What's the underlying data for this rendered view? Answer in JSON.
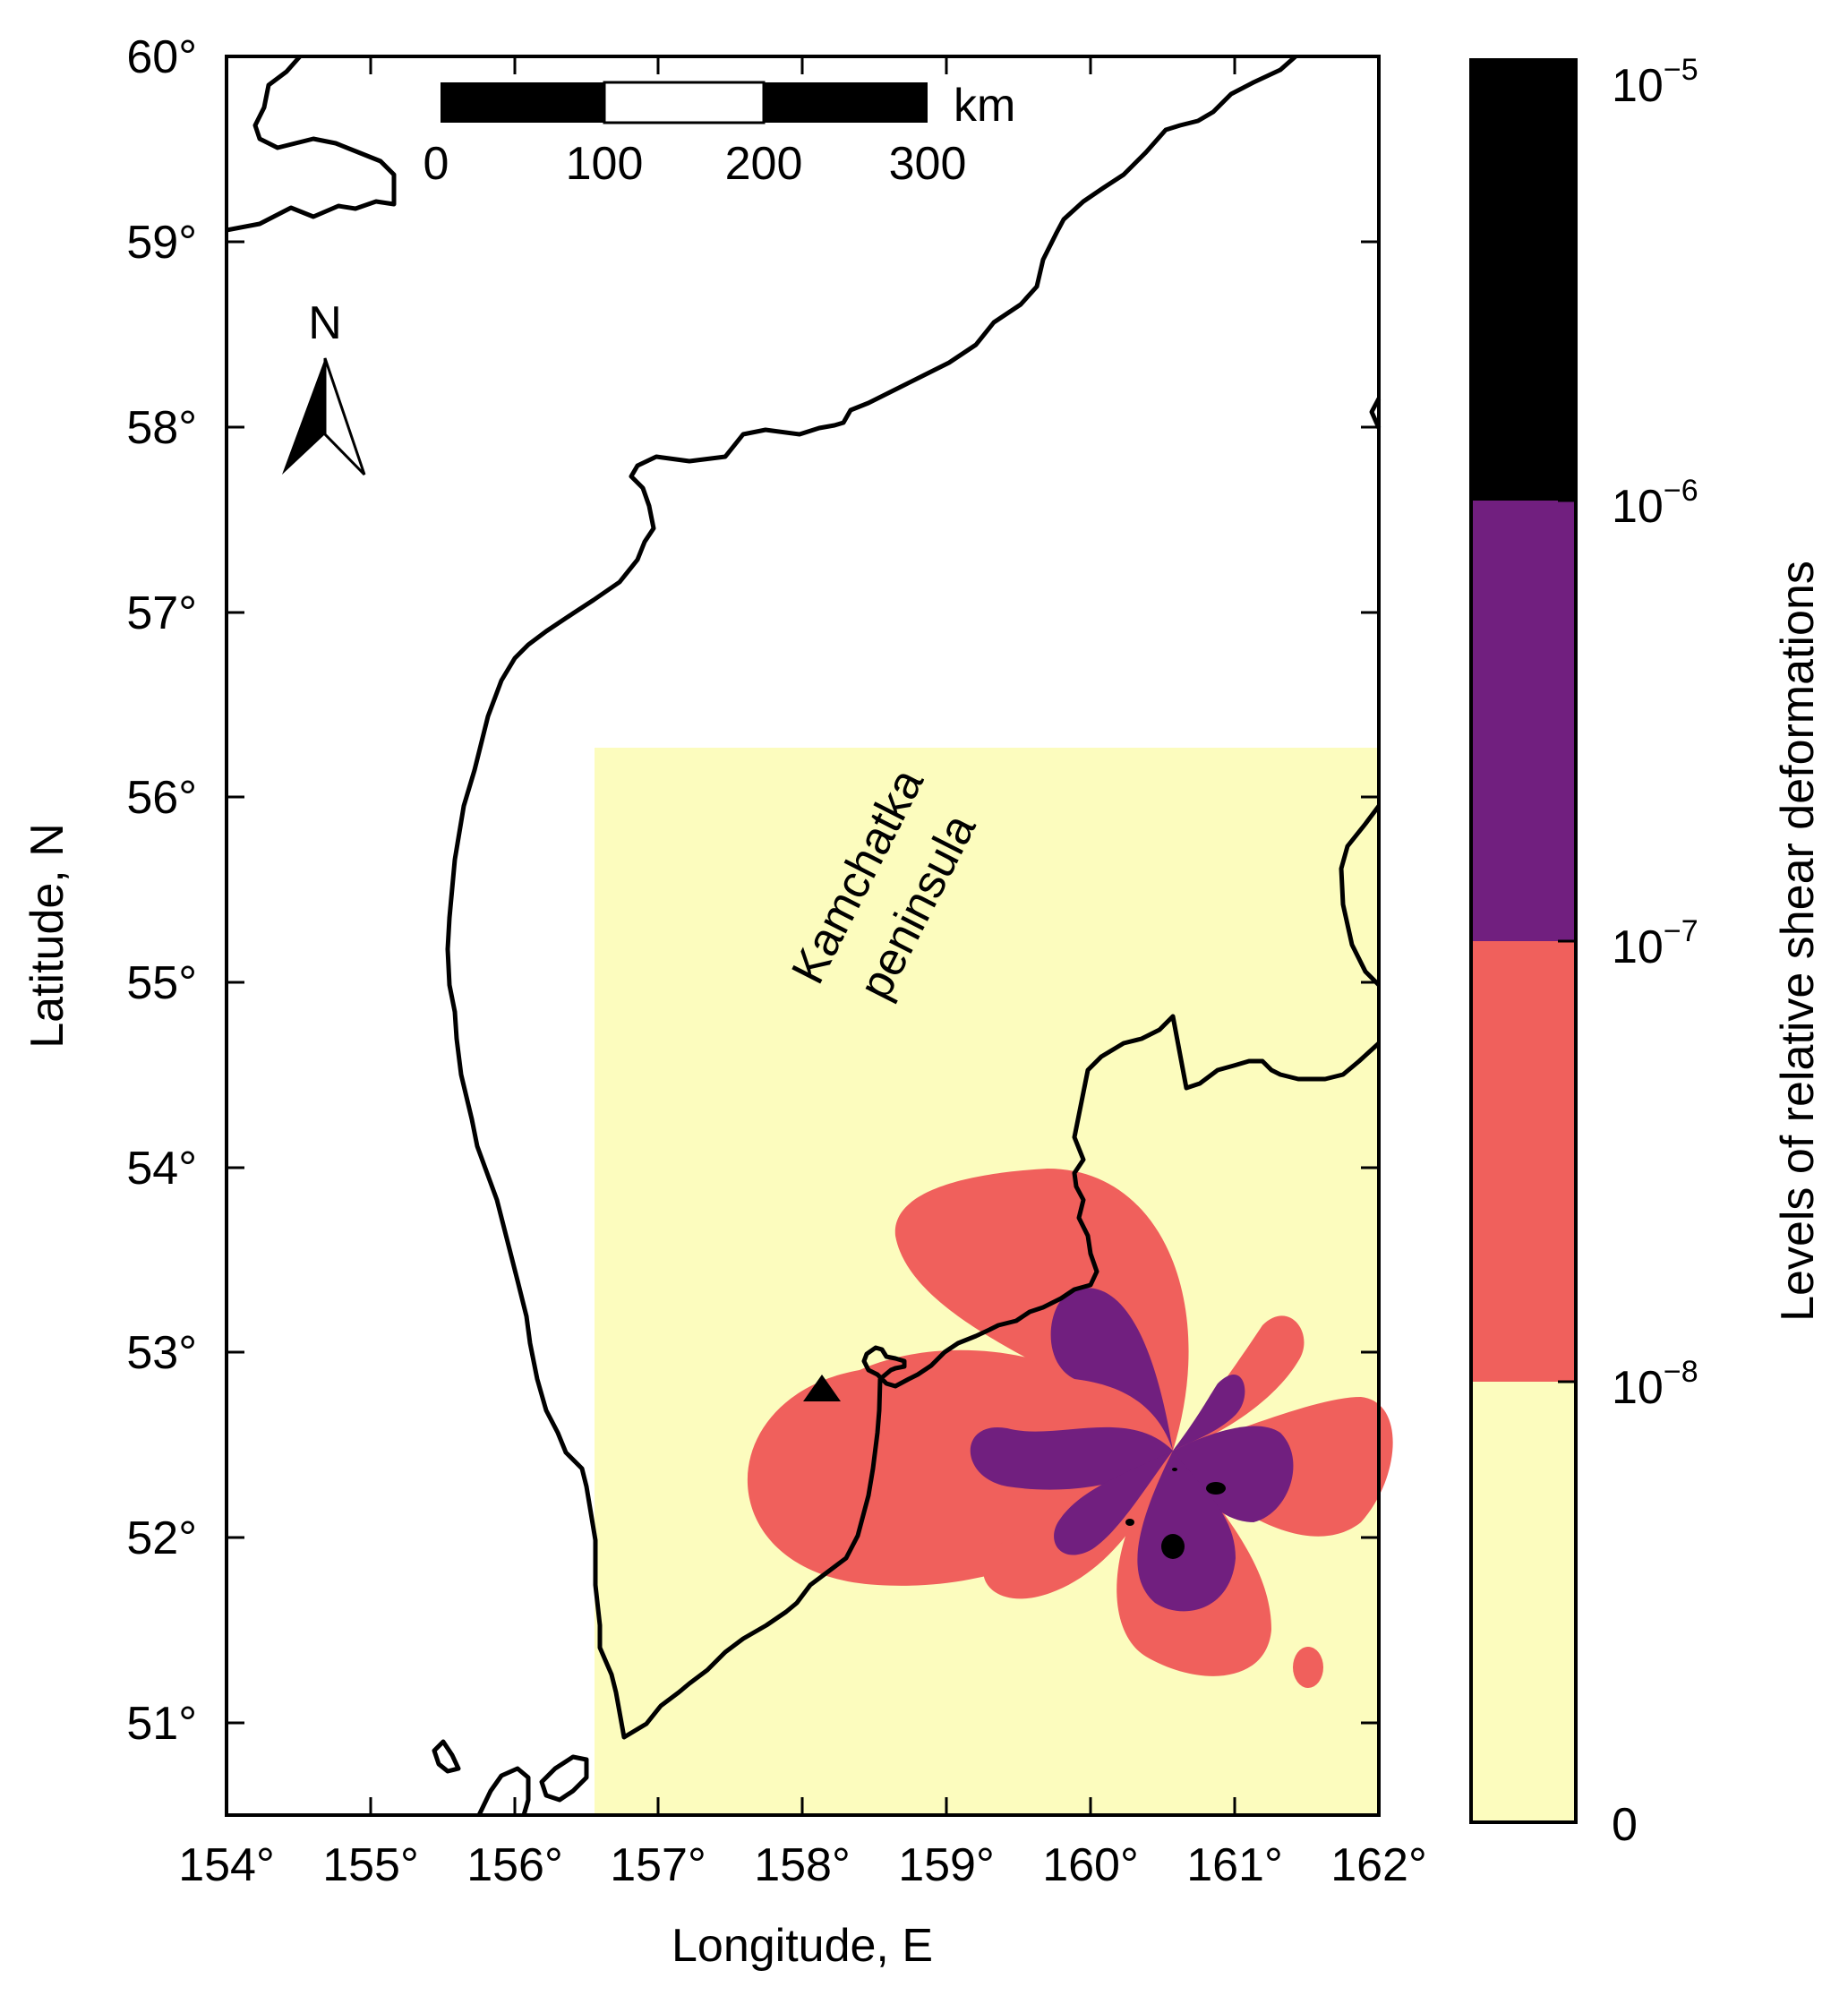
{
  "map": {
    "x_axis": {
      "label": "Longitude, E",
      "range": [
        154,
        162
      ],
      "ticks": [
        "154°",
        "155°",
        "156°",
        "157°",
        "158°",
        "159°",
        "160°",
        "161°",
        "162°"
      ]
    },
    "y_axis": {
      "label": "Latitude, N",
      "range": [
        50.5,
        60
      ],
      "ticks": [
        "51°",
        "52°",
        "53°",
        "54°",
        "55°",
        "56°",
        "57°",
        "58°",
        "59°",
        "60°"
      ]
    },
    "region_label_line1": "Kamchatka",
    "region_label_line2": "peninsula",
    "north_label": "N",
    "scale_bar": {
      "unit": "km",
      "ticks": [
        "0",
        "100",
        "200",
        "300"
      ]
    },
    "station_marker": "triangle",
    "model_region": {
      "lon": [
        156.55,
        162
      ],
      "lat": [
        50.5,
        56.3
      ]
    }
  },
  "colorbar": {
    "title": "Levels of relative shear deformations",
    "levels": [
      {
        "base": "0",
        "exp": ""
      },
      {
        "base": "10",
        "exp": "−8"
      },
      {
        "base": "10",
        "exp": "−7"
      },
      {
        "base": "10",
        "exp": "−6"
      },
      {
        "base": "10",
        "exp": "−5"
      }
    ],
    "colors": [
      "#fcfcbe",
      "#f0605c",
      "#711f7f",
      "#000000"
    ]
  }
}
